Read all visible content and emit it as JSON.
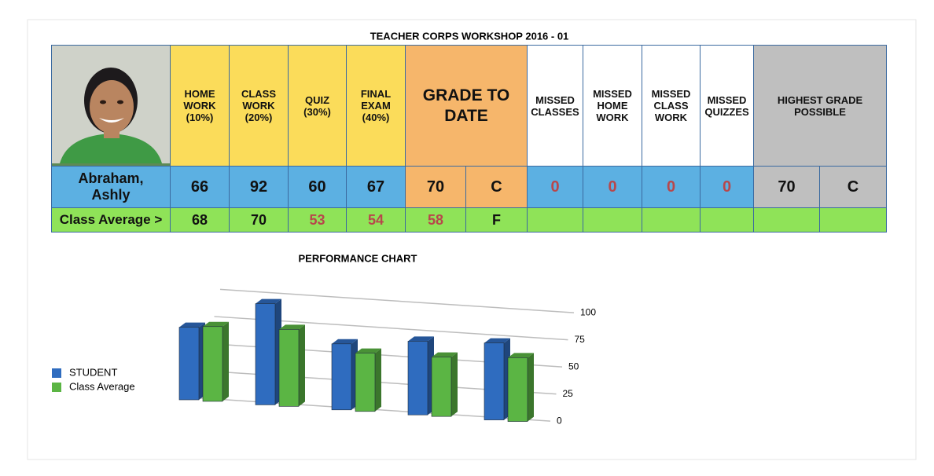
{
  "title": "TEACHER CORPS WORKSHOP 2016 - 01",
  "table": {
    "headers": [
      "HOME WORK (10%)",
      "CLASS WORK (20%)",
      "QUIZ (30%)",
      "FINAL EXAM (40%)",
      "GRADE TO DATE",
      "MISSED CLASSES",
      "MISSED HOME WORK",
      "MISSED CLASS WORK",
      "MISSED QUIZZES",
      "HIGHEST GRADE POSSIBLE"
    ],
    "rows": [
      [
        "Abraham, Ashly",
        66,
        92,
        60,
        67,
        70,
        "C",
        0,
        0,
        0,
        0,
        70,
        "C"
      ],
      [
        "Class Average >",
        68,
        70,
        53,
        54,
        58,
        "F"
      ]
    ]
  },
  "chart_data": {
    "type": "bar",
    "title": "PERFORMANCE CHART",
    "categories": [
      null,
      null,
      null,
      null,
      null
    ],
    "series": [
      {
        "name": "STUDENT",
        "color": "#2f6cbf",
        "values": [
          66,
          92,
          60,
          67,
          70
        ]
      },
      {
        "name": "Class Average",
        "color": "#5bb544",
        "values": [
          68,
          70,
          53,
          54,
          58
        ]
      }
    ],
    "ylim": [
      0,
      100
    ],
    "yticks": [
      0,
      25,
      50,
      75,
      100
    ],
    "grid": true,
    "legend": "left"
  }
}
